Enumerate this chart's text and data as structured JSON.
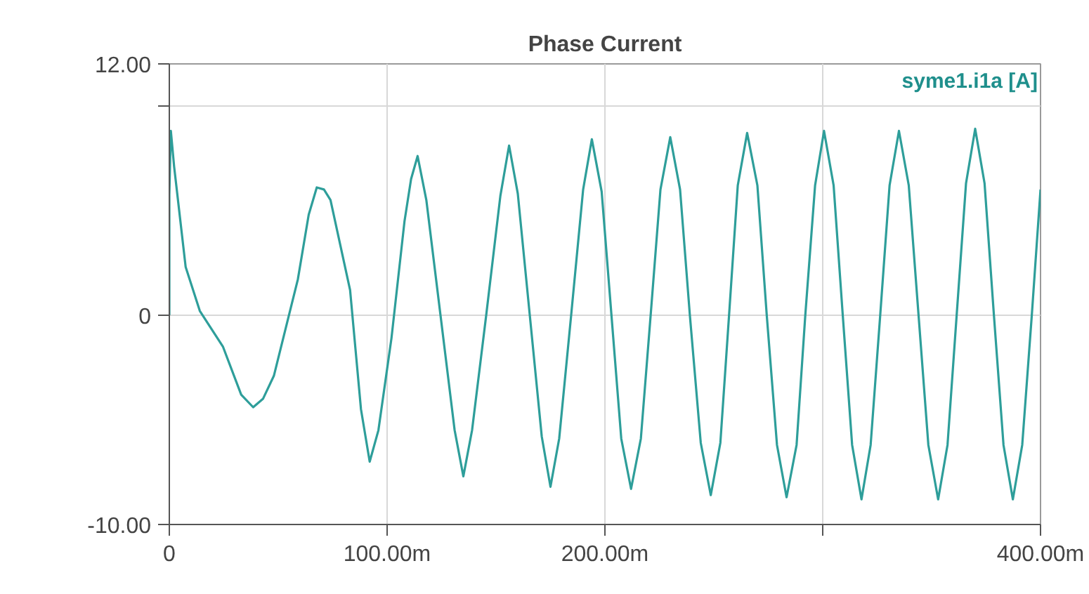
{
  "chart_data": {
    "type": "line",
    "title": "Phase Current",
    "x": [
      0,
      0,
      0.7,
      2.2,
      7.5,
      14,
      24.6,
      33,
      38.5,
      43,
      48,
      59,
      64,
      67.7,
      71,
      74,
      83,
      88,
      92,
      96,
      102,
      108,
      111,
      114,
      118,
      124.5,
      131,
      135,
      139,
      145.5,
      152,
      156,
      160,
      165.5,
      171,
      175,
      179,
      184.5,
      190,
      194,
      198.5,
      203,
      207.5,
      212,
      216.5,
      221,
      225.5,
      230,
      234.5,
      239,
      244,
      248.6,
      253,
      257,
      261,
      265.3,
      270,
      274.3,
      279,
      283.4,
      288,
      292,
      296.5,
      300.6,
      305,
      309.2,
      313.5,
      317.8,
      322,
      326.4,
      330.7,
      335,
      339.5,
      344,
      348.5,
      353,
      357.3,
      361.5,
      365.8,
      370,
      374.3,
      378.6,
      383,
      387.3,
      391.6,
      396,
      400
    ],
    "series": [
      {
        "name": "syme1.i1a [A]",
        "color": "#2e9e9a",
        "values": [
          0,
          5.75,
          8.8,
          7.1,
          2.3,
          0.2,
          -1.5,
          -3.8,
          -4.4,
          -4.0,
          -2.9,
          1.7,
          4.8,
          6.1,
          6.0,
          5.5,
          1.2,
          -4.5,
          -7.0,
          -5.5,
          -1.1,
          4.5,
          6.5,
          7.6,
          5.5,
          0,
          -5.5,
          -7.7,
          -5.5,
          0,
          5.7,
          8.1,
          5.8,
          0,
          -5.8,
          -8.2,
          -5.9,
          0,
          6.0,
          8.4,
          5.9,
          0,
          -5.9,
          -8.3,
          -5.9,
          0,
          6.0,
          8.5,
          6.0,
          0,
          -6.1,
          -8.6,
          -6.1,
          0,
          6.2,
          8.7,
          6.2,
          0,
          -6.2,
          -8.7,
          -6.2,
          0,
          6.2,
          8.8,
          6.2,
          0,
          -6.2,
          -8.8,
          -6.2,
          0,
          6.2,
          8.8,
          6.2,
          0,
          -6.2,
          -8.8,
          -6.2,
          0,
          6.3,
          8.9,
          6.3,
          0,
          -6.2,
          -8.8,
          -6.2,
          0,
          6.0
        ]
      }
    ],
    "xlim": [
      0,
      400
    ],
    "ylim": [
      -10,
      12
    ],
    "xticks": [
      0,
      {
        "value": 100,
        "label": "100.00m"
      },
      {
        "value": 200,
        "label": "200.00m"
      },
      {
        "value": 300,
        "label": null
      },
      {
        "value": 400,
        "label": "400.00m"
      }
    ],
    "yticks": [
      {
        "value": -10,
        "label": "-10.00"
      },
      0,
      {
        "value": 10,
        "label": null
      },
      {
        "value": 12,
        "label": "12.00"
      }
    ],
    "grid": true,
    "legend": false,
    "marker": "none",
    "line_style": "solid"
  }
}
